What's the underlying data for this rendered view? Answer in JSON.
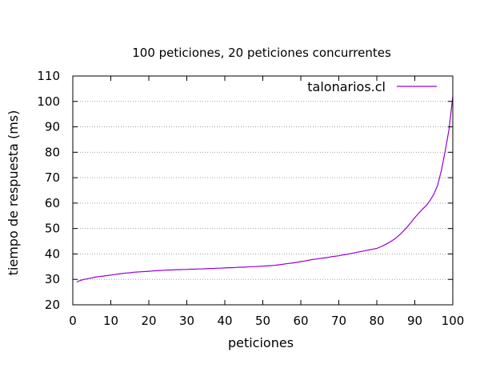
{
  "chart_data": {
    "type": "line",
    "title": "100 peticiones, 20 peticiones concurrentes",
    "xlabel": "peticiones",
    "ylabel": "tiempo de respuesta (ms)",
    "xlim": [
      0,
      100
    ],
    "ylim": [
      20,
      110
    ],
    "xticks": [
      0,
      10,
      20,
      30,
      40,
      50,
      60,
      70,
      80,
      90,
      100
    ],
    "yticks": [
      20,
      30,
      40,
      50,
      60,
      70,
      80,
      90,
      100,
      110
    ],
    "grid": "horizontal dashed",
    "legend_position": "top-right",
    "series": [
      {
        "name": "talonarios.cl",
        "color": "#9400d3",
        "x": [
          1,
          2,
          3,
          4,
          5,
          6,
          7,
          8,
          9,
          10,
          11,
          12,
          13,
          14,
          15,
          16,
          17,
          18,
          19,
          20,
          21,
          22,
          23,
          24,
          25,
          26,
          27,
          28,
          29,
          30,
          31,
          32,
          33,
          34,
          35,
          36,
          37,
          38,
          39,
          40,
          41,
          42,
          43,
          44,
          45,
          46,
          47,
          48,
          49,
          50,
          51,
          52,
          53,
          54,
          55,
          56,
          57,
          58,
          59,
          60,
          61,
          62,
          63,
          64,
          65,
          66,
          67,
          68,
          69,
          70,
          71,
          72,
          73,
          74,
          75,
          76,
          77,
          78,
          79,
          80,
          81,
          82,
          83,
          84,
          85,
          86,
          87,
          88,
          89,
          90,
          91,
          92,
          93,
          94,
          95,
          96,
          97,
          98,
          99,
          100
        ],
        "values": [
          29.0,
          29.6,
          30.0,
          30.3,
          30.6,
          30.9,
          31.1,
          31.3,
          31.5,
          31.7,
          31.9,
          32.1,
          32.3,
          32.5,
          32.6,
          32.8,
          32.9,
          33.0,
          33.1,
          33.2,
          33.3,
          33.4,
          33.5,
          33.6,
          33.7,
          33.7,
          33.8,
          33.8,
          33.9,
          33.9,
          34.0,
          34.0,
          34.1,
          34.1,
          34.2,
          34.3,
          34.3,
          34.4,
          34.4,
          34.5,
          34.6,
          34.6,
          34.7,
          34.8,
          34.8,
          34.9,
          35.0,
          35.0,
          35.1,
          35.2,
          35.3,
          35.4,
          35.5,
          35.7,
          35.9,
          36.1,
          36.3,
          36.5,
          36.7,
          37.0,
          37.2,
          37.5,
          37.8,
          38.0,
          38.2,
          38.4,
          38.6,
          38.9,
          39.1,
          39.3,
          39.6,
          39.8,
          40.1,
          40.4,
          40.7,
          41.0,
          41.3,
          41.6,
          41.9,
          42.2,
          42.8,
          43.5,
          44.3,
          45.2,
          46.2,
          47.5,
          49.0,
          50.6,
          52.4,
          54.3,
          56.0,
          57.6,
          59.0,
          61.0,
          63.5,
          67.0,
          73.0,
          80.5,
          89.0,
          102.0
        ]
      }
    ]
  }
}
